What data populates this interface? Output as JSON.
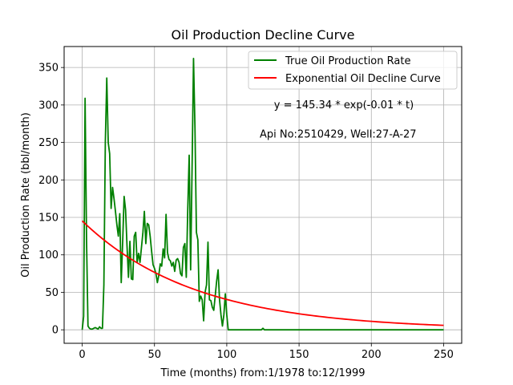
{
  "chart_data": {
    "type": "line",
    "title": "Oil Production Decline Curve",
    "xlabel": "Time (months) from:1/1978 to:12/1999",
    "ylabel": "Oil Production Rate (bbl/month)",
    "xlim": [
      -12.5,
      262.5
    ],
    "ylim": [
      -18,
      378
    ],
    "xticks": [
      0,
      50,
      100,
      150,
      200,
      250
    ],
    "yticks": [
      0,
      50,
      100,
      150,
      200,
      250,
      300,
      350
    ],
    "grid": true,
    "legend_position": "top-right",
    "annotations": [
      {
        "text": "y = 145.34 * exp(-0.01 * t)",
        "x": 181,
        "y": 300
      },
      {
        "text": "Api No:2510429, Well:27-A-27",
        "x": 177,
        "y": 261
      }
    ],
    "series": [
      {
        "name": "True Oil Production Rate",
        "color": "#008000",
        "x": [
          0,
          1,
          2,
          3,
          4,
          5,
          6,
          7,
          8,
          9,
          10,
          11,
          12,
          13,
          14,
          15,
          16,
          17,
          18,
          19,
          20,
          21,
          22,
          23,
          24,
          25,
          26,
          27,
          28,
          29,
          30,
          31,
          32,
          33,
          34,
          35,
          36,
          37,
          38,
          39,
          40,
          41,
          42,
          43,
          44,
          45,
          46,
          47,
          48,
          49,
          50,
          51,
          52,
          53,
          54,
          55,
          56,
          57,
          58,
          59,
          60,
          61,
          62,
          63,
          64,
          65,
          66,
          67,
          68,
          69,
          70,
          71,
          72,
          73,
          74,
          75,
          76,
          77,
          78,
          79,
          80,
          81,
          82,
          83,
          84,
          85,
          86,
          87,
          88,
          89,
          90,
          91,
          92,
          93,
          94,
          95,
          96,
          97,
          98,
          99,
          100,
          101,
          110,
          120,
          124,
          125,
          126,
          130,
          140,
          150,
          160,
          170,
          180,
          190,
          200,
          210,
          220,
          230,
          240,
          250
        ],
        "values": [
          0,
          18,
          309,
          120,
          5,
          2,
          1,
          1,
          2,
          3,
          2,
          1,
          4,
          2,
          2,
          60,
          250,
          336,
          250,
          235,
          162,
          190,
          175,
          158,
          140,
          125,
          155,
          63,
          118,
          178,
          160,
          112,
          70,
          118,
          68,
          67,
          125,
          130,
          90,
          102,
          90,
          110,
          130,
          158,
          115,
          142,
          140,
          125,
          105,
          87,
          82,
          75,
          63,
          73,
          88,
          85,
          108,
          96,
          154,
          103,
          94,
          92,
          85,
          90,
          78,
          93,
          95,
          90,
          75,
          72,
          110,
          115,
          70,
          160,
          233,
          80,
          215,
          362,
          270,
          130,
          120,
          38,
          45,
          40,
          12,
          50,
          60,
          117,
          40,
          39,
          30,
          26,
          45,
          65,
          80,
          40,
          20,
          5,
          20,
          48,
          20,
          0,
          0,
          0,
          0,
          2,
          0,
          0,
          0,
          0,
          0,
          0,
          0,
          0,
          0,
          0,
          0,
          0,
          0,
          0
        ]
      },
      {
        "name": "Exponential Oil Decline Curve",
        "color": "#ff0000",
        "function": "y = 145.34 * exp(-0.01 * t)",
        "x_range": [
          0,
          250
        ]
      }
    ]
  }
}
